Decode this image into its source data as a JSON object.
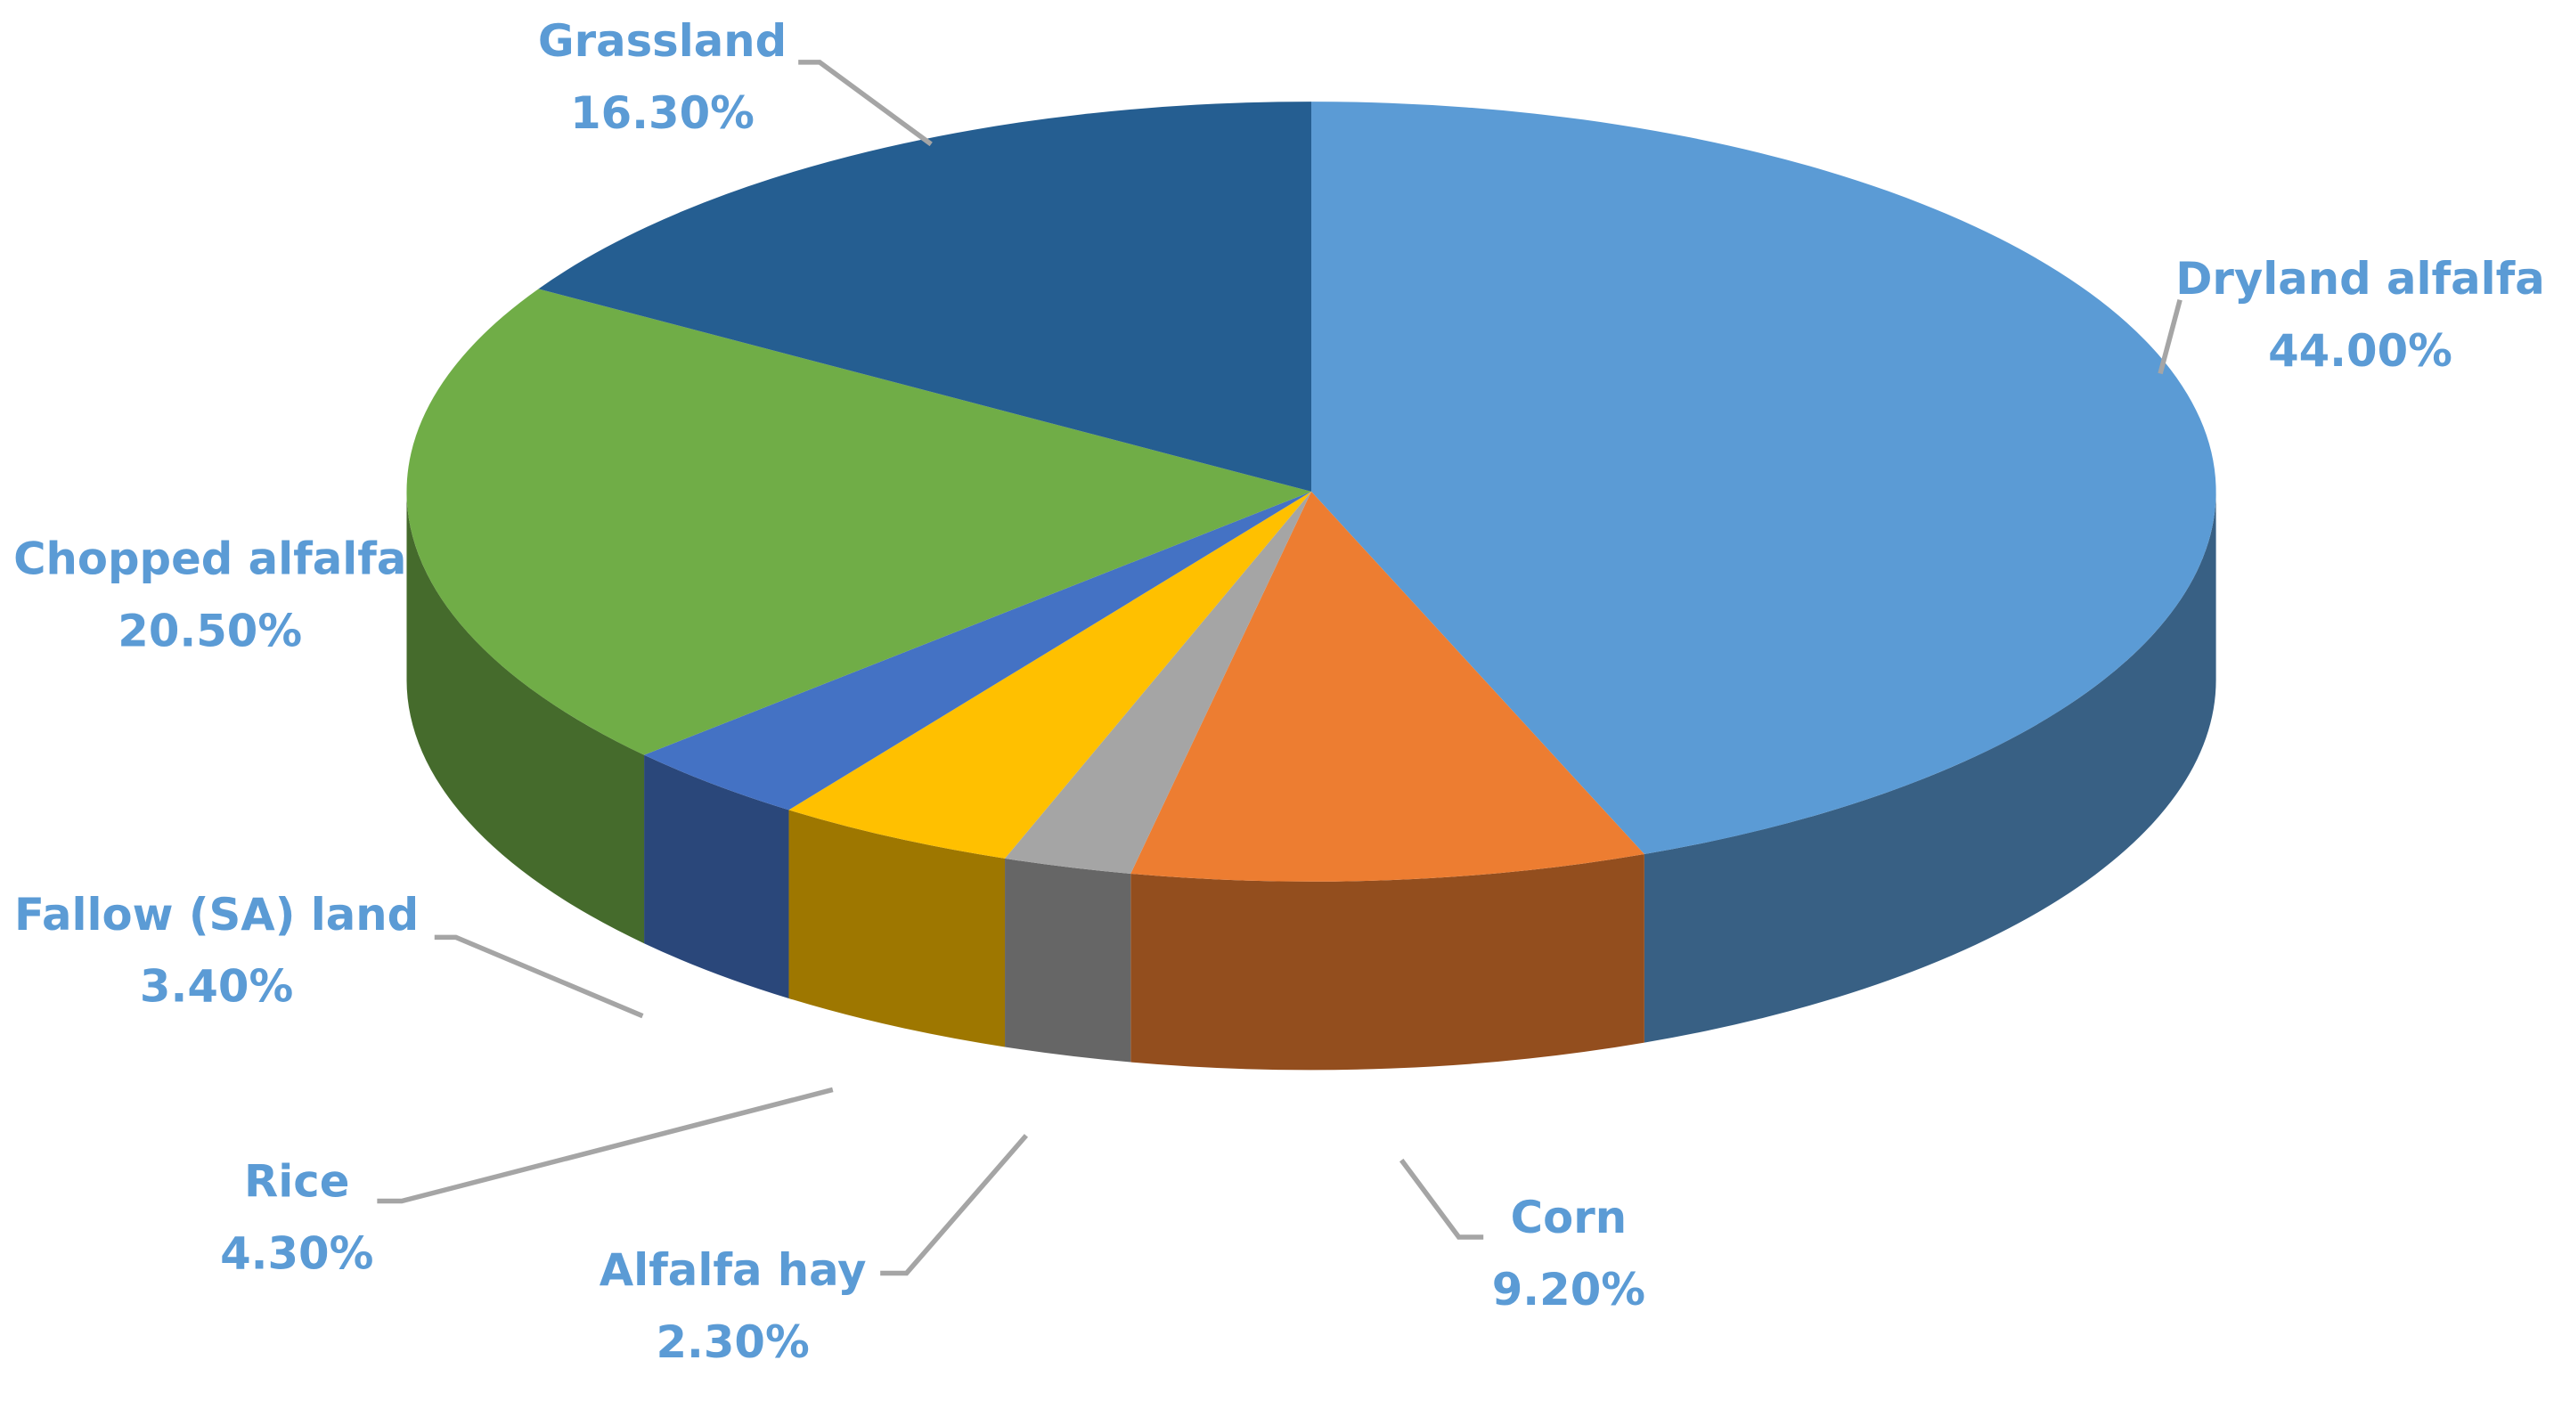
{
  "chart_data": {
    "type": "pie3d",
    "categories": [
      "Dryland alfalfa",
      "Corn",
      "Alfalfa hay",
      "Rice",
      "Fallow (SA) land",
      "Chopped alfalfa",
      "Grassland"
    ],
    "values": [
      44.0,
      9.2,
      2.3,
      4.3,
      3.4,
      20.5,
      16.3
    ],
    "value_labels": [
      "44.00%",
      "9.20%",
      "2.30%",
      "4.30%",
      "3.40%",
      "20.50%",
      "16.30%"
    ],
    "colors": [
      "#5b9bd5",
      "#ed7d31",
      "#a5a5a5",
      "#ffc000",
      "#4472c4",
      "#70ad47",
      "#255e91"
    ]
  }
}
